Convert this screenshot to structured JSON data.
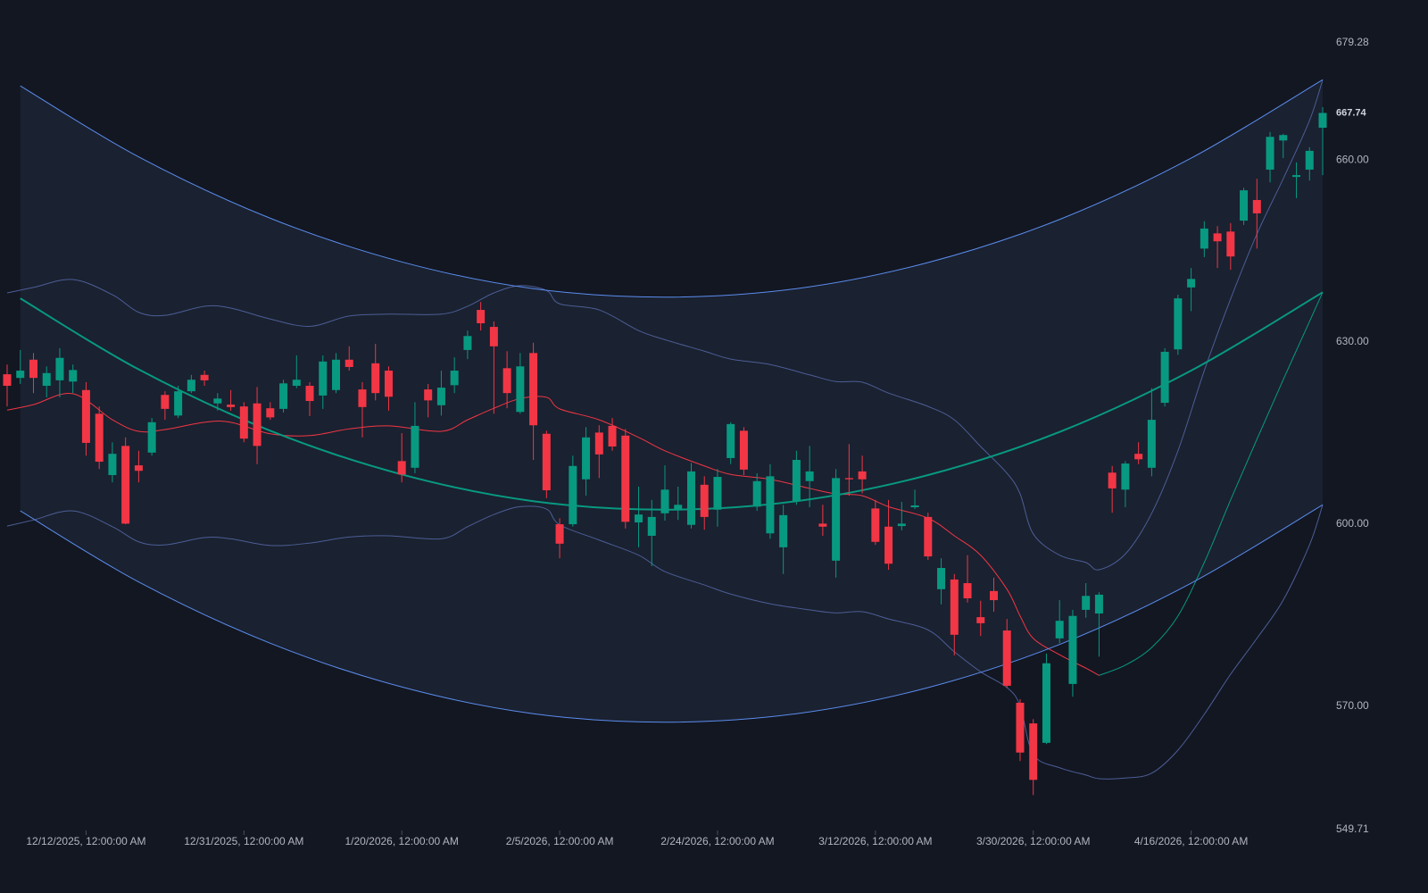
{
  "chart_data": {
    "type": "candlestick",
    "categories": [
      null,
      null,
      null,
      null,
      null,
      null,
      "12/12/2025, 12:00:00 AM",
      null,
      null,
      null,
      null,
      null,
      null,
      null,
      null,
      null,
      null,
      null,
      "12/31/2025, 12:00:00 AM",
      null,
      null,
      null,
      null,
      null,
      null,
      null,
      null,
      null,
      null,
      null,
      "1/20/2026, 12:00:00 AM",
      null,
      null,
      null,
      null,
      null,
      null,
      null,
      null,
      null,
      null,
      null,
      "2/5/2026, 12:00:00 AM",
      null,
      null,
      null,
      null,
      null,
      null,
      null,
      null,
      null,
      null,
      null,
      "2/24/2026, 12:00:00 AM",
      null,
      null,
      null,
      null,
      null,
      null,
      null,
      null,
      null,
      null,
      null,
      "3/12/2026, 12:00:00 AM",
      null,
      null,
      null,
      null,
      null,
      null,
      null,
      null,
      null,
      null,
      null,
      "3/30/2026, 12:00:00 AM",
      null,
      null,
      null,
      null,
      null,
      null,
      null,
      null,
      null,
      null,
      null,
      "4/16/2026, 12:00:00 AM",
      null,
      null,
      null,
      null,
      null,
      null,
      null,
      null,
      null,
      null
    ],
    "open": [
      624.7,
      624.1,
      627.1,
      622.8,
      623.7,
      623.5,
      622.1,
      618.2,
      608.1,
      612.9,
      609.7,
      611.8,
      621.3,
      617.9,
      621.9,
      624.6,
      619.9,
      619.7,
      619.4,
      619.9,
      619.1,
      619.0,
      622.8,
      622.8,
      621.2,
      622.1,
      627.1,
      622.2,
      626.5,
      625.3,
      610.4,
      609.3,
      622.2,
      619.6,
      622.9,
      628.7,
      635.3,
      632.5,
      625.7,
      618.5,
      628.2,
      614.9,
      600.0,
      600.0,
      607.4,
      615.1,
      616.2,
      614.6,
      600.3,
      598.1,
      601.8,
      602.5,
      599.9,
      606.5,
      602.4,
      610.9,
      615.4,
      602.9,
      598.5,
      596.2,
      603.8,
      607.1,
      600.1,
      594.0,
      607.6,
      608.7,
      602.6,
      599.6,
      599.7,
      602.8,
      601.2,
      589.3,
      590.9,
      590.3,
      584.7,
      589.0,
      582.5,
      570.6,
      567.2,
      564.0,
      581.2,
      573.7,
      585.9,
      585.3,
      608.5,
      605.7,
      611.6,
      609.3,
      620.0,
      628.8,
      639.0,
      645.4,
      647.9,
      648.2,
      650.0,
      653.4,
      658.4,
      663.2,
      657.2,
      658.4,
      665.3
    ],
    "high": [
      626.3,
      628.7,
      628.2,
      626.0,
      629.0,
      626.3,
      623.4,
      619.4,
      613.5,
      614.3,
      612.1,
      617.5,
      621.9,
      622.8,
      624.6,
      625.3,
      621.6,
      622.1,
      620.1,
      622.6,
      620.1,
      623.8,
      627.8,
      623.4,
      627.8,
      628.2,
      629.3,
      623.4,
      629.7,
      626.0,
      615.0,
      620.1,
      623.1,
      625.3,
      627.5,
      631.9,
      636.6,
      633.4,
      628.5,
      628.2,
      629.9,
      615.4,
      601.0,
      611.3,
      616.0,
      616.3,
      617.5,
      615.7,
      606.2,
      604.0,
      609.7,
      606.2,
      610.1,
      607.9,
      609.1,
      616.8,
      616.0,
      608.4,
      609.9,
      603.2,
      612.1,
      612.9,
      603.2,
      609.1,
      613.2,
      611.3,
      604.0,
      604.0,
      603.7,
      605.7,
      601.9,
      594.4,
      591.8,
      594.9,
      587.4,
      591.2,
      584.4,
      571.2,
      567.9,
      578.7,
      587.5,
      585.9,
      590.3,
      588.8,
      609.6,
      610.4,
      613.5,
      622.4,
      629.0,
      637.8,
      642.2,
      649.9,
      649.1,
      649.6,
      655.4,
      656.9,
      664.6,
      664.3,
      659.6,
      662.1,
      668.7
    ],
    "low": [
      619.4,
      623.1,
      621.6,
      620.9,
      620.9,
      621.6,
      611.3,
      609.1,
      606.9,
      600.0,
      606.9,
      611.3,
      617.2,
      617.5,
      621.6,
      622.8,
      618.7,
      618.7,
      613.5,
      609.9,
      617.2,
      618.4,
      622.4,
      617.8,
      619.0,
      621.6,
      625.3,
      614.3,
      620.4,
      618.7,
      606.9,
      608.4,
      617.6,
      617.9,
      621.6,
      627.2,
      631.9,
      618.2,
      619.1,
      618.2,
      610.6,
      604.3,
      594.4,
      599.6,
      604.7,
      607.6,
      612.1,
      599.3,
      596.2,
      593.1,
      600.6,
      600.7,
      599.3,
      599.1,
      599.6,
      609.9,
      608.1,
      602.2,
      597.6,
      591.8,
      603.2,
      602.8,
      598.1,
      591.2,
      604.7,
      605.1,
      596.6,
      592.5,
      599.0,
      602.5,
      594.1,
      586.8,
      578.4,
      587.1,
      581.6,
      585.6,
      573.1,
      561.0,
      555.4,
      563.8,
      580.4,
      571.6,
      584.6,
      578.2,
      601.9,
      602.8,
      609.9,
      607.9,
      619.4,
      627.9,
      635.1,
      644.0,
      642.2,
      641.9,
      649.3,
      645.4,
      656.3,
      660.3,
      653.7,
      656.6,
      657.5
    ],
    "close": [
      622.8,
      625.3,
      624.1,
      624.9,
      627.4,
      625.4,
      613.4,
      610.3,
      611.6,
      600.1,
      608.8,
      616.8,
      619.0,
      621.9,
      623.8,
      623.7,
      620.7,
      619.3,
      614.1,
      612.9,
      617.6,
      623.2,
      623.8,
      620.3,
      626.8,
      627.1,
      625.9,
      619.3,
      621.6,
      621.0,
      608.2,
      616.2,
      620.4,
      622.5,
      625.3,
      631.0,
      633.1,
      629.3,
      621.6,
      626.0,
      616.3,
      605.6,
      596.8,
      609.6,
      614.3,
      611.5,
      612.8,
      600.4,
      601.6,
      601.2,
      605.7,
      603.2,
      608.7,
      601.2,
      607.8,
      616.5,
      609.0,
      607.1,
      607.9,
      601.5,
      610.6,
      608.7,
      599.6,
      607.6,
      607.4,
      607.4,
      597.1,
      593.5,
      600.1,
      603.1,
      594.7,
      592.8,
      581.8,
      587.8,
      583.7,
      587.5,
      573.4,
      562.4,
      557.9,
      577.1,
      584.1,
      584.9,
      588.2,
      588.4,
      605.9,
      610.0,
      610.7,
      617.2,
      628.4,
      637.2,
      640.4,
      648.7,
      646.6,
      644.1,
      655.0,
      651.2,
      663.8,
      664.1,
      657.5,
      661.5,
      667.74
    ],
    "up_color": "#089981",
    "down_color": "#f23645",
    "ylim": [
      549.71,
      679.28
    ],
    "yticks": [
      549.71,
      {
        "value": 570,
        "label": "570.00"
      },
      {
        "value": 600,
        "label": "600.00"
      },
      {
        "value": 630,
        "label": "630.00"
      },
      {
        "value": 660,
        "label": "660.00"
      },
      679.28
    ],
    "regression": {
      "color": "#089981",
      "x": [
        1,
        10,
        20,
        30,
        40,
        50,
        60,
        70,
        80,
        90,
        100
      ],
      "values": [
        637.2,
        625.5,
        615.4,
        608.2,
        603.8,
        602.4,
        603.8,
        608.1,
        615.2,
        625.3,
        638.2
      ]
    },
    "channel": {
      "color": "#5b8def",
      "fill": "#1a2130",
      "x": [
        1,
        10,
        20,
        30,
        40,
        50,
        60,
        70,
        80,
        90,
        100
      ],
      "upper": [
        672.2,
        660.5,
        650.4,
        643.2,
        638.8,
        637.4,
        638.8,
        643.1,
        650.2,
        660.3,
        673.2
      ],
      "lower": [
        602.2,
        590.5,
        580.4,
        573.2,
        568.8,
        567.4,
        568.8,
        573.1,
        580.2,
        590.3,
        603.2
      ]
    },
    "bands": {
      "color": "#4c5e96",
      "x": [
        0,
        2,
        5,
        8,
        10,
        12,
        15,
        17,
        20,
        23,
        26,
        29,
        33,
        35,
        37,
        39,
        41,
        42,
        45,
        48,
        50,
        53,
        55,
        58,
        61,
        63,
        65,
        67,
        70,
        72,
        74,
        76,
        77,
        78,
        80,
        82,
        83,
        85,
        87,
        89,
        91,
        93,
        95,
        97,
        99,
        100
      ],
      "upper": [
        638.1,
        639.0,
        640.3,
        637.8,
        634.9,
        634.4,
        635.9,
        635.6,
        633.8,
        632.6,
        634.3,
        634.6,
        634.6,
        635.9,
        638.1,
        639.3,
        638.5,
        636.3,
        635.3,
        631.9,
        630.4,
        628.5,
        627.2,
        626.3,
        624.6,
        623.5,
        623.4,
        621.6,
        619.4,
        617.2,
        612.8,
        608.4,
        605.0,
        598.4,
        594.9,
        593.7,
        592.5,
        595.1,
        601.8,
        612.1,
        625.3,
        637.1,
        647.8,
        656.9,
        666.5,
        673.2
      ],
      "lower": [
        599.7,
        600.7,
        602.2,
        599.6,
        597.1,
        596.6,
        597.8,
        597.6,
        596.5,
        596.9,
        597.9,
        598.1,
        597.6,
        599.6,
        601.6,
        602.9,
        602.5,
        599.9,
        597.4,
        594.9,
        592.2,
        590.0,
        588.5,
        586.9,
        585.9,
        585.4,
        585.6,
        584.4,
        582.6,
        579.0,
        575.7,
        573.1,
        570.1,
        562.1,
        559.9,
        558.7,
        558.1,
        558.2,
        559.0,
        562.8,
        568.7,
        575.3,
        581.2,
        587.5,
        596.6,
        603.2
      ]
    },
    "basis": [
      {
        "color": "#f23645",
        "x": [
          0,
          2,
          5,
          8,
          10,
          12,
          15,
          17,
          20,
          23,
          26,
          29,
          33,
          35,
          37,
          39,
          41,
          42,
          45,
          48,
          50,
          53,
          55,
          58,
          61,
          63,
          65,
          67,
          70,
          72,
          74,
          76,
          77,
          78,
          80,
          82,
          83
        ],
        "values": [
          618.8,
          619.7,
          621.5,
          617.2,
          615.3,
          615.6,
          616.8,
          616.8,
          614.9,
          614.6,
          615.7,
          616.2,
          615.3,
          617.2,
          619.1,
          620.7,
          620.9,
          619.0,
          617.2,
          614.3,
          612.1,
          609.6,
          608.2,
          607.4,
          605.9,
          605.0,
          604.7,
          602.9,
          601.0,
          598.1,
          594.9,
          589.3,
          584.9,
          581.2,
          578.5,
          576.3,
          575.1
        ]
      },
      {
        "color": "#089981",
        "x": [
          83,
          85,
          87,
          89,
          91,
          93,
          95,
          97,
          99,
          100
        ],
        "values": [
          575.1,
          576.8,
          579.7,
          584.9,
          593.7,
          604.0,
          614.0,
          623.8,
          633.4,
          638.2
        ]
      }
    ]
  }
}
